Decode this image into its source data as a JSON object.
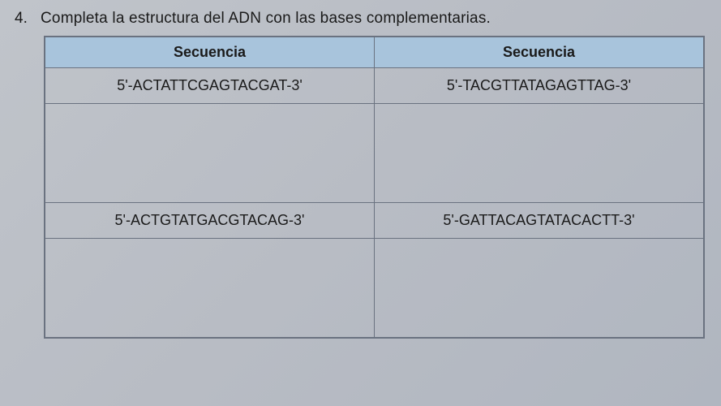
{
  "question": {
    "number": "4.",
    "text": "Completa la estructura del ADN con las bases complementarias."
  },
  "table": {
    "headers": [
      "Secuencia",
      "Secuencia"
    ],
    "rows": [
      {
        "left": "5'-ACTATTCGAGTACGAT-3'",
        "right": "5'-TACGTTATAGAGTTAG-3'"
      },
      {
        "left": "",
        "right": ""
      },
      {
        "left": "5'-ACTGTATGACGTACAG-3'",
        "right": "5'-GATTACAGTATACACTT-3'"
      },
      {
        "left": "",
        "right": ""
      }
    ],
    "styling": {
      "header_bg": "#a8c4dc",
      "border_color": "#6a7280",
      "body_bg": "#b8bcc4",
      "text_color": "#1a1a1a",
      "header_fontsize": 18,
      "cell_fontsize": 18,
      "sequence_row_height": 44,
      "answer_row_height": 122
    }
  }
}
